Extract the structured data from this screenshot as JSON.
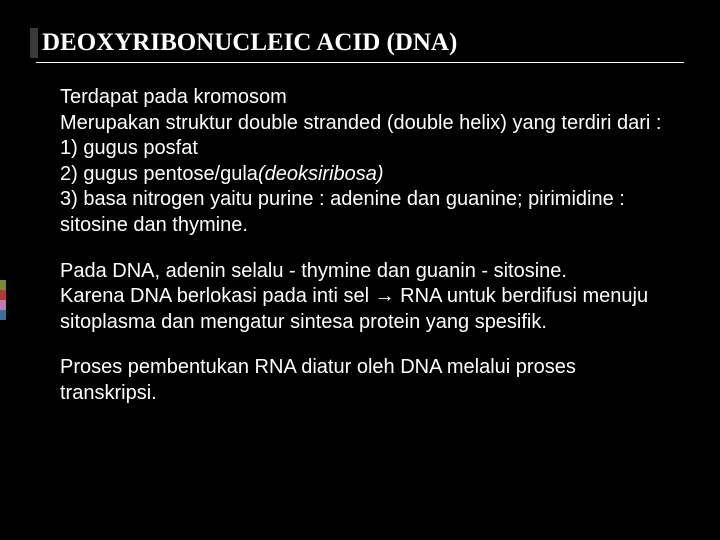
{
  "title": "DEOXYRIBONUCLEIC ACID (DNA)",
  "paragraphs": {
    "p1": {
      "l1": "Terdapat pada kromosom",
      "l2": "Merupakan struktur double stranded (double helix) yang terdiri dari :",
      "l3": "1) gugus posfat",
      "l4a": "2) gugus pentose/gula",
      "l4b": "(deoksiribosa)",
      "l5": "3) basa nitrogen yaitu purine : adenine dan guanine; pirimidine : sitosine dan thymine."
    },
    "p2": {
      "l1": "Pada DNA, adenin selalu - thymine dan guanin - sitosine.",
      "l2": "Karena DNA berlokasi pada inti sel →  RNA untuk berdifusi menuju sitoplasma dan mengatur sintesa protein yang spesifik."
    },
    "p3": {
      "l1": "Proses pembentukan RNA diatur oleh DNA melalui proses transkripsi."
    }
  },
  "styling": {
    "background_color": "#000000",
    "text_color": "#ffffff",
    "title_font": "Times New Roman",
    "body_font": "Arial",
    "title_fontsize": 25,
    "body_fontsize": 20,
    "accent_bar_color": "#3a3a3a",
    "stripe_colors": [
      "#7a8a30",
      "#b03838",
      "#c078b0",
      "#3a7098"
    ]
  }
}
